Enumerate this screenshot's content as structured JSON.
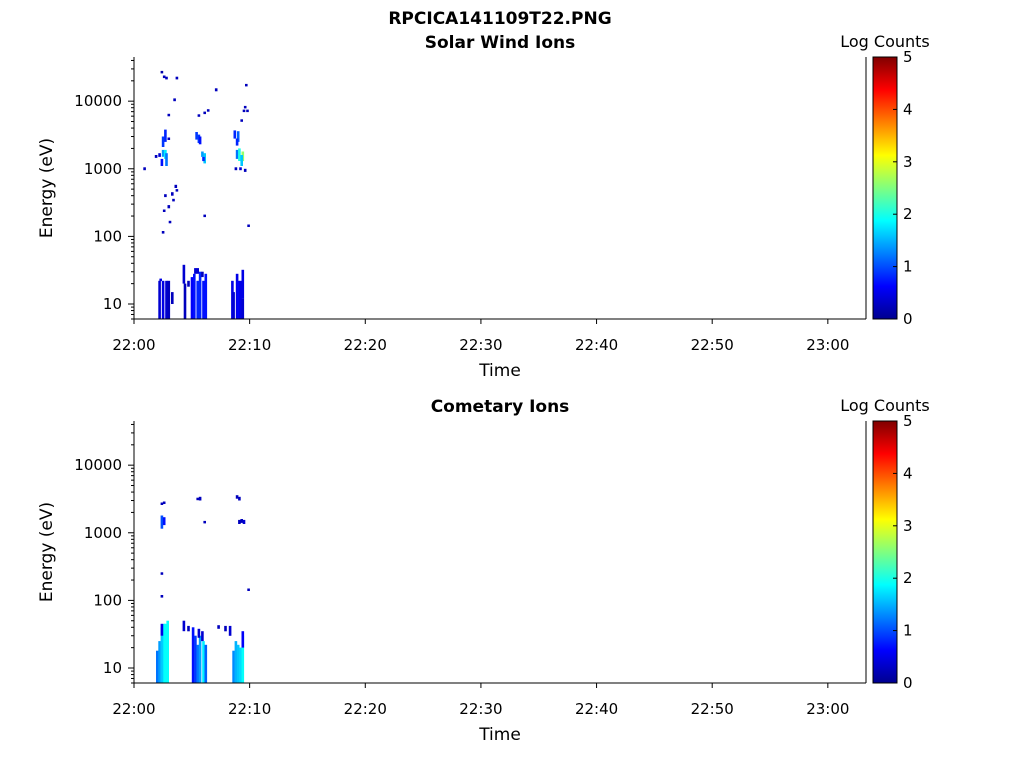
{
  "figure_title": "RPCICA141109T22.PNG",
  "chart_data": [
    {
      "type": "heatmap",
      "title": "Solar Wind Ions",
      "xlabel": "Time",
      "ylabel": "Energy (eV)",
      "x_ticks": [
        "22:00",
        "22:10",
        "22:20",
        "22:30",
        "22:40",
        "22:50",
        "23:00"
      ],
      "y_ticks": [
        "10",
        "100",
        "1000",
        "10000"
      ],
      "y_scale": "log",
      "ylim": [
        6,
        45000
      ],
      "xlim_minutes": [
        0,
        63.3
      ],
      "colorbar": {
        "title": "Log Counts",
        "ticks": [
          "0",
          "1",
          "2",
          "3",
          "4",
          "5"
        ],
        "range": [
          0,
          5
        ]
      },
      "cells": [
        [
          2.1,
          6,
          22,
          0.4
        ],
        [
          2.2,
          22,
          0,
          0.5
        ],
        [
          2.4,
          6,
          22,
          0.5
        ],
        [
          2.7,
          6,
          22,
          0.4
        ],
        [
          2.9,
          6,
          22,
          0.3
        ],
        [
          3.2,
          10,
          15,
          0.3
        ],
        [
          2.4,
          2100,
          3000,
          0.9
        ],
        [
          2.6,
          2500,
          3800,
          0.8
        ],
        [
          2.4,
          1500,
          1900,
          1.4
        ],
        [
          2.6,
          1400,
          1900,
          1.8
        ],
        [
          2.7,
          1100,
          1700,
          1.2
        ],
        [
          2.3,
          1100,
          1400,
          0.7
        ],
        [
          2.1,
          1500,
          1700,
          0.4
        ],
        [
          2.3,
          26000,
          28000,
          0.2
        ],
        [
          2.5,
          22000,
          24000,
          0.3
        ],
        [
          2.7,
          21000,
          23000,
          0.3
        ],
        [
          3.6,
          21000,
          23000,
          0.3
        ],
        [
          3.4,
          10000,
          11000,
          0.3
        ],
        [
          2.9,
          6000,
          6500,
          0.3
        ],
        [
          2.9,
          2700,
          2900,
          0.3
        ],
        [
          1.8,
          1450,
          1600,
          0.3
        ],
        [
          0.8,
          950,
          1050,
          0.3
        ],
        [
          2.6,
          380,
          420,
          0.3
        ],
        [
          3.2,
          400,
          450,
          0.3
        ],
        [
          3.5,
          520,
          580,
          0.3
        ],
        [
          3.6,
          460,
          500,
          0.3
        ],
        [
          2.9,
          260,
          290,
          0.3
        ],
        [
          2.5,
          230,
          250,
          0.3
        ],
        [
          2.4,
          110,
          120,
          0.3
        ],
        [
          3.3,
          330,
          360,
          0.3
        ],
        [
          3.0,
          160,
          170,
          0.3
        ],
        [
          4.2,
          20,
          38,
          0.4
        ],
        [
          4.3,
          6,
          20,
          0.3
        ],
        [
          4.9,
          6,
          25,
          0.6
        ],
        [
          5.1,
          6,
          28,
          0.7
        ],
        [
          5.4,
          6,
          22,
          0.8
        ],
        [
          5.6,
          6,
          30,
          0.8
        ],
        [
          5.9,
          6,
          22,
          0.7
        ],
        [
          6.1,
          6,
          28,
          0.7
        ],
        [
          4.6,
          18,
          22,
          0.3
        ],
        [
          5.2,
          28,
          34,
          0.4
        ],
        [
          5.4,
          28,
          34,
          0.4
        ],
        [
          5.8,
          25,
          30,
          0.3
        ],
        [
          5.3,
          2700,
          3500,
          0.9
        ],
        [
          5.5,
          2400,
          3200,
          0.9
        ],
        [
          5.6,
          2300,
          3000,
          0.7
        ],
        [
          5.8,
          1500,
          1800,
          1.4
        ],
        [
          6.0,
          1200,
          1700,
          1.6
        ],
        [
          5.9,
          1300,
          1500,
          0.8
        ],
        [
          6.0,
          200,
          210,
          0.3
        ],
        [
          5.5,
          6000,
          6400,
          0.3
        ],
        [
          6.0,
          6500,
          7000,
          0.3
        ],
        [
          6.3,
          7000,
          7600,
          0.3
        ],
        [
          7.0,
          14000,
          15500,
          0.3
        ],
        [
          8.4,
          6,
          22,
          0.5
        ],
        [
          8.5,
          6,
          15,
          0.4
        ],
        [
          8.8,
          6,
          28,
          0.5
        ],
        [
          8.9,
          6,
          22,
          0.6
        ],
        [
          9.1,
          6,
          22,
          0.5
        ],
        [
          9.3,
          6,
          12,
          0.4
        ],
        [
          9.3,
          12,
          32,
          0.5
        ],
        [
          8.6,
          2800,
          3700,
          0.8
        ],
        [
          8.9,
          2500,
          3600,
          1.1
        ],
        [
          8.8,
          2200,
          2800,
          0.8
        ],
        [
          8.8,
          1400,
          1900,
          1.2
        ],
        [
          9.0,
          1300,
          2000,
          2.0
        ],
        [
          9.3,
          1300,
          1800,
          2.6
        ],
        [
          9.2,
          1100,
          1600,
          1.6
        ],
        [
          9.1,
          950,
          1050,
          0.4
        ],
        [
          9.5,
          900,
          1000,
          0.3
        ],
        [
          8.7,
          950,
          1050,
          0.3
        ],
        [
          9.5,
          8000,
          8500,
          0.3
        ],
        [
          9.4,
          7000,
          7500,
          0.3
        ],
        [
          9.7,
          7000,
          7500,
          0.3
        ],
        [
          9.6,
          17000,
          18000,
          0.3
        ],
        [
          9.2,
          5000,
          5400,
          0.3
        ],
        [
          9.8,
          140,
          150,
          0.3
        ]
      ]
    },
    {
      "type": "heatmap",
      "title": "Cometary Ions",
      "xlabel": "Time",
      "ylabel": "Energy (eV)",
      "x_ticks": [
        "22:00",
        "22:10",
        "22:20",
        "22:30",
        "22:40",
        "22:50",
        "23:00"
      ],
      "y_ticks": [
        "10",
        "100",
        "1000",
        "10000"
      ],
      "y_scale": "log",
      "ylim": [
        6,
        45000
      ],
      "xlim_minutes": [
        0,
        63.3
      ],
      "colorbar": {
        "title": "Log Counts",
        "ticks": [
          "0",
          "1",
          "2",
          "3",
          "4",
          "5"
        ],
        "range": [
          0,
          5
        ]
      },
      "cells": [
        [
          1.9,
          6,
          18,
          1.2
        ],
        [
          2.1,
          6,
          25,
          1.4
        ],
        [
          2.3,
          6,
          40,
          1.6
        ],
        [
          2.5,
          6,
          45,
          1.8
        ],
        [
          2.6,
          6,
          45,
          1.9
        ],
        [
          2.8,
          6,
          50,
          1.9
        ],
        [
          2.3,
          30,
          45,
          0.5
        ],
        [
          2.3,
          1150,
          1800,
          1.0
        ],
        [
          2.5,
          1300,
          1700,
          0.7
        ],
        [
          2.3,
          2600,
          2800,
          0.3
        ],
        [
          2.5,
          2700,
          2900,
          0.3
        ],
        [
          2.3,
          240,
          260,
          0.3
        ],
        [
          2.3,
          110,
          120,
          0.3
        ],
        [
          4.2,
          35,
          50,
          0.4
        ],
        [
          4.6,
          35,
          42,
          0.3
        ],
        [
          5.0,
          6,
          40,
          0.7
        ],
        [
          5.2,
          6,
          30,
          0.9
        ],
        [
          5.4,
          6,
          22,
          1.2
        ],
        [
          5.6,
          6,
          30,
          1.4
        ],
        [
          5.9,
          6,
          25,
          1.8
        ],
        [
          6.1,
          6,
          22,
          1.1
        ],
        [
          5.8,
          25,
          35,
          0.4
        ],
        [
          5.5,
          28,
          38,
          0.4
        ],
        [
          5.4,
          3100,
          3300,
          0.3
        ],
        [
          5.6,
          3000,
          3400,
          0.3
        ],
        [
          6.0,
          1400,
          1500,
          0.3
        ],
        [
          7.2,
          38,
          43,
          0.3
        ],
        [
          7.8,
          35,
          42,
          0.3
        ],
        [
          8.2,
          30,
          42,
          0.4
        ],
        [
          8.5,
          6,
          18,
          1.3
        ],
        [
          8.7,
          6,
          25,
          1.5
        ],
        [
          8.9,
          6,
          22,
          1.6
        ],
        [
          9.1,
          6,
          20,
          1.7
        ],
        [
          9.3,
          6,
          30,
          1.9
        ],
        [
          9.3,
          20,
          35,
          0.6
        ],
        [
          8.8,
          3200,
          3600,
          0.3
        ],
        [
          9.0,
          3000,
          3400,
          0.3
        ],
        [
          9.0,
          1350,
          1550,
          0.3
        ],
        [
          9.2,
          1400,
          1600,
          0.3
        ],
        [
          9.4,
          1350,
          1550,
          0.4
        ],
        [
          9.8,
          140,
          150,
          0.3
        ]
      ]
    }
  ]
}
